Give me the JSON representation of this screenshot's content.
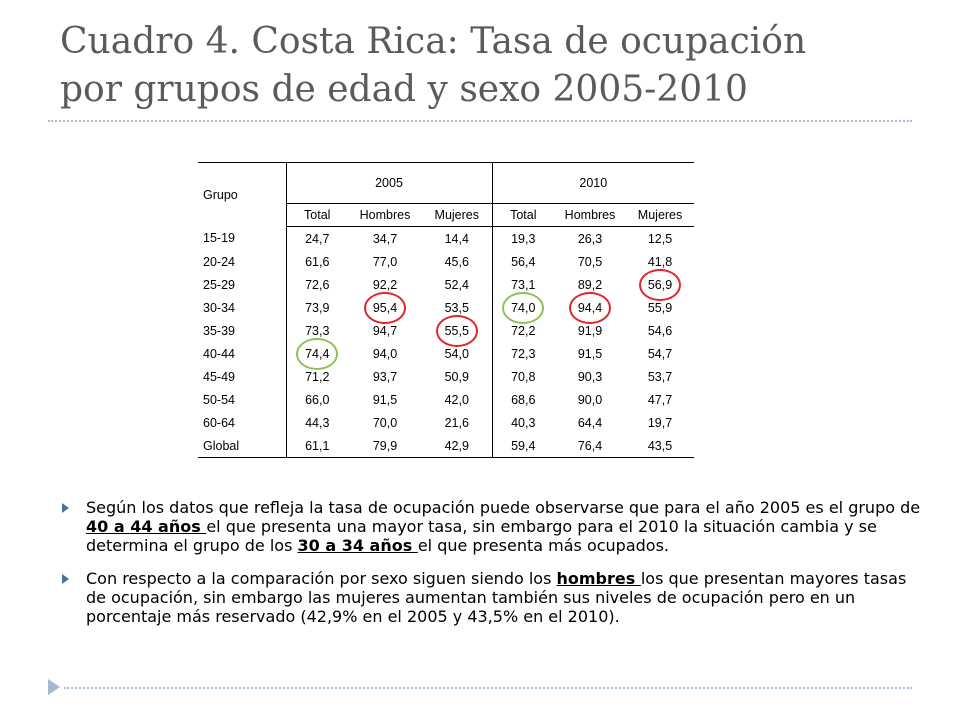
{
  "title": {
    "line1": "Cuadro 4. Costa Rica: Tasa de ocupación",
    "line2": "por grupos de edad y sexo 2005-2010"
  },
  "table": {
    "group_header": "Grupo",
    "years": [
      "2005",
      "2010"
    ],
    "subheaders": [
      "Total",
      "Hombres",
      "Mujeres",
      "Total",
      "Hombres",
      "Mujeres"
    ],
    "rows": [
      {
        "grupo": "15-19",
        "values": [
          "24,7",
          "34,7",
          "14,4",
          "19,3",
          "26,3",
          "12,5"
        ]
      },
      {
        "grupo": "20-24",
        "values": [
          "61,6",
          "77,0",
          "45,6",
          "56,4",
          "70,5",
          "41,8"
        ]
      },
      {
        "grupo": "25-29",
        "values": [
          "72,6",
          "92,2",
          "52,4",
          "73,1",
          "89,2",
          "56,9"
        ]
      },
      {
        "grupo": "30-34",
        "values": [
          "73,9",
          "95,4",
          "53,5",
          "74,0",
          "94,4",
          "55,9"
        ]
      },
      {
        "grupo": "35-39",
        "values": [
          "73,3",
          "94,7",
          "55,5",
          "72,2",
          "91,9",
          "54,6"
        ]
      },
      {
        "grupo": "40-44",
        "values": [
          "74,4",
          "94,0",
          "54,0",
          "72,3",
          "91,5",
          "54,7"
        ]
      },
      {
        "grupo": "45-49",
        "values": [
          "71,2",
          "93,7",
          "50,9",
          "70,8",
          "90,3",
          "53,7"
        ]
      },
      {
        "grupo": "50-54",
        "values": [
          "66,0",
          "91,5",
          "42,0",
          "68,6",
          "90,0",
          "47,7"
        ]
      },
      {
        "grupo": "60-64",
        "values": [
          "44,3",
          "70,0",
          "21,6",
          "40,3",
          "64,4",
          "19,7"
        ]
      },
      {
        "grupo": "Global",
        "values": [
          "61,1",
          "79,9",
          "42,9",
          "59,4",
          "76,4",
          "43,5"
        ]
      }
    ],
    "highlight_colors": {
      "red": "#e0252b",
      "green": "#8dc155"
    }
  },
  "bullets": [
    {
      "part1": "Según los datos que refleja la tasa de ocupación puede observarse que para el año 2005 es el grupo de ",
      "bold1": "40 a 44 años ",
      "part2": "el que presenta una mayor tasa, sin embargo para el 2010 la situación cambia y se determina el grupo de los ",
      "bold2": "30 a 34 años ",
      "part3": "el que presenta más ocupados."
    },
    {
      "part1": "Con respecto a la comparación por sexo siguen siendo los ",
      "bold1": "hombres ",
      "part2": "los que presentan mayores tasas de ocupación, sin embargo las mujeres aumentan también sus niveles de ocupación pero en un porcentaje más reservado (42,9% en el 2005 y 43,5% en el 2010)."
    }
  ],
  "accent_color": "#4f6ea0"
}
